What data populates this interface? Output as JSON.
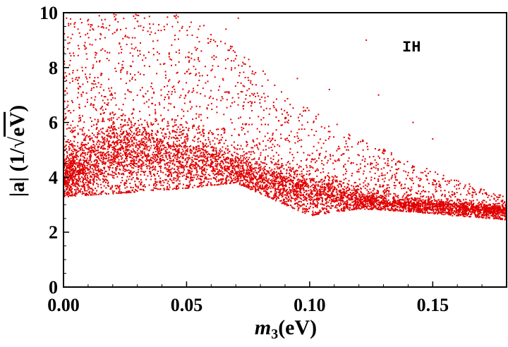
{
  "chart_data": {
    "type": "scatter",
    "title": "",
    "xlabel": "m3(eV)",
    "xlabel_main": "m",
    "xlabel_sub": "3",
    "xlabel_unit": "(eV)",
    "ylabel": "|a| (1/√eV)",
    "ylabel_prefix": "|a| (1/",
    "ylabel_radical": "√",
    "ylabel_radicand": "eV",
    "ylabel_suffix": ")",
    "annotation": "IH",
    "xlim": [
      0,
      0.18
    ],
    "ylim": [
      0,
      10
    ],
    "x_ticks": [
      "0.00",
      "0.05",
      "0.10",
      "0.15"
    ],
    "y_ticks": [
      "0",
      "2",
      "4",
      "6",
      "8",
      "10"
    ],
    "x_tick_values": [
      0,
      0.05,
      0.1,
      0.15
    ],
    "y_tick_values": [
      0,
      2,
      4,
      6,
      8,
      10
    ],
    "grid": false,
    "legend": "none",
    "marker_color": "#e00000",
    "marker": "small square dots",
    "series": [
      {
        "points": [
          [
            0.003,
            3.5
          ],
          [
            0.005,
            3.8
          ],
          [
            0.008,
            4.1
          ],
          [
            0.01,
            4.3
          ],
          [
            0.012,
            3.9
          ],
          [
            0.015,
            4.2
          ],
          [
            0.018,
            3.7
          ],
          [
            0.02,
            4.0
          ],
          [
            0.022,
            4.4
          ],
          [
            0.025,
            3.8
          ],
          [
            0.004,
            4.6
          ],
          [
            0.007,
            5.0
          ],
          [
            0.011,
            5.4
          ],
          [
            0.014,
            6.1
          ],
          [
            0.016,
            6.8
          ],
          [
            0.019,
            7.0
          ],
          [
            0.013,
            7.4
          ],
          [
            0.009,
            8.0
          ],
          [
            0.006,
            8.8
          ],
          [
            0.002,
            9.6
          ],
          [
            0.028,
            4.6
          ],
          [
            0.03,
            5.2
          ],
          [
            0.032,
            5.6
          ],
          [
            0.035,
            5.0
          ],
          [
            0.038,
            4.8
          ],
          [
            0.04,
            5.3
          ],
          [
            0.042,
            4.5
          ],
          [
            0.045,
            5.1
          ],
          [
            0.048,
            4.9
          ],
          [
            0.05,
            5.4
          ],
          [
            0.026,
            6.0
          ],
          [
            0.031,
            6.4
          ],
          [
            0.036,
            6.9
          ],
          [
            0.041,
            7.3
          ],
          [
            0.046,
            7.8
          ],
          [
            0.051,
            8.2
          ],
          [
            0.056,
            8.6
          ],
          [
            0.061,
            9.0
          ],
          [
            0.066,
            9.4
          ],
          [
            0.071,
            9.8
          ],
          [
            0.052,
            4.2
          ],
          [
            0.055,
            4.6
          ],
          [
            0.058,
            4.0
          ],
          [
            0.06,
            4.4
          ],
          [
            0.063,
            3.9
          ],
          [
            0.066,
            4.3
          ],
          [
            0.069,
            3.8
          ],
          [
            0.072,
            4.1
          ],
          [
            0.075,
            3.7
          ],
          [
            0.078,
            4.0
          ],
          [
            0.08,
            3.6
          ],
          [
            0.083,
            3.9
          ],
          [
            0.086,
            3.5
          ],
          [
            0.089,
            3.7
          ],
          [
            0.092,
            3.4
          ],
          [
            0.095,
            3.6
          ],
          [
            0.098,
            3.3
          ],
          [
            0.101,
            3.5
          ],
          [
            0.104,
            3.2
          ],
          [
            0.107,
            3.4
          ],
          [
            0.11,
            3.1
          ],
          [
            0.113,
            3.3
          ],
          [
            0.116,
            3.0
          ],
          [
            0.119,
            3.2
          ],
          [
            0.122,
            2.9
          ],
          [
            0.125,
            3.1
          ],
          [
            0.128,
            2.9
          ],
          [
            0.131,
            3.0
          ],
          [
            0.134,
            2.8
          ],
          [
            0.137,
            3.0
          ],
          [
            0.14,
            2.8
          ],
          [
            0.143,
            2.9
          ],
          [
            0.146,
            2.7
          ],
          [
            0.149,
            2.9
          ],
          [
            0.152,
            2.7
          ],
          [
            0.155,
            2.8
          ],
          [
            0.158,
            2.6
          ],
          [
            0.161,
            2.8
          ],
          [
            0.164,
            2.6
          ],
          [
            0.167,
            2.7
          ],
          [
            0.17,
            2.6
          ],
          [
            0.173,
            2.7
          ],
          [
            0.176,
            2.5
          ],
          [
            0.179,
            2.6
          ],
          [
            0.085,
            5.2
          ],
          [
            0.09,
            6.0
          ],
          [
            0.095,
            5.5
          ],
          [
            0.1,
            4.8
          ],
          [
            0.105,
            4.5
          ],
          [
            0.11,
            4.3
          ],
          [
            0.115,
            5.0
          ],
          [
            0.12,
            4.2
          ],
          [
            0.125,
            3.9
          ],
          [
            0.13,
            3.7
          ],
          [
            0.135,
            4.5
          ],
          [
            0.14,
            3.6
          ],
          [
            0.145,
            3.4
          ],
          [
            0.15,
            3.8
          ],
          [
            0.155,
            3.3
          ],
          [
            0.16,
            3.2
          ],
          [
            0.165,
            3.4
          ],
          [
            0.17,
            3.1
          ],
          [
            0.175,
            3.2
          ],
          [
            0.108,
            7.2
          ],
          [
            0.095,
            7.6
          ],
          [
            0.123,
            9.0
          ],
          [
            0.128,
            7.0
          ],
          [
            0.142,
            6.0
          ],
          [
            0.15,
            5.4
          ],
          [
            0.002,
            3.3
          ]
        ]
      }
    ],
    "density": {
      "description": "Dense band of points; lower boundary falls from ~3.3 at m3=0 to ~2.5 at m3=0.18; upper envelope falls from 10 near m3=0.05 to ~3.2 at m3=0.18",
      "lower_edge": [
        [
          0.0,
          3.3
        ],
        [
          0.02,
          3.4
        ],
        [
          0.05,
          3.6
        ],
        [
          0.07,
          3.8
        ],
        [
          0.08,
          3.4
        ],
        [
          0.1,
          2.6
        ],
        [
          0.12,
          2.85
        ],
        [
          0.14,
          2.75
        ],
        [
          0.16,
          2.6
        ],
        [
          0.18,
          2.45
        ]
      ],
      "upper_edge": [
        [
          0.0,
          10.0
        ],
        [
          0.05,
          10.0
        ],
        [
          0.065,
          9.0
        ],
        [
          0.08,
          8.0
        ],
        [
          0.09,
          7.0
        ],
        [
          0.1,
          6.5
        ],
        [
          0.12,
          5.5
        ],
        [
          0.14,
          4.6
        ],
        [
          0.16,
          3.9
        ],
        [
          0.18,
          3.3
        ]
      ],
      "core": [
        [
          0.0,
          4.0
        ],
        [
          0.02,
          5.0
        ],
        [
          0.04,
          5.0
        ],
        [
          0.06,
          4.5
        ],
        [
          0.08,
          4.0
        ],
        [
          0.1,
          3.5
        ],
        [
          0.12,
          3.2
        ],
        [
          0.14,
          3.0
        ],
        [
          0.16,
          2.9
        ],
        [
          0.18,
          2.8
        ]
      ]
    }
  }
}
